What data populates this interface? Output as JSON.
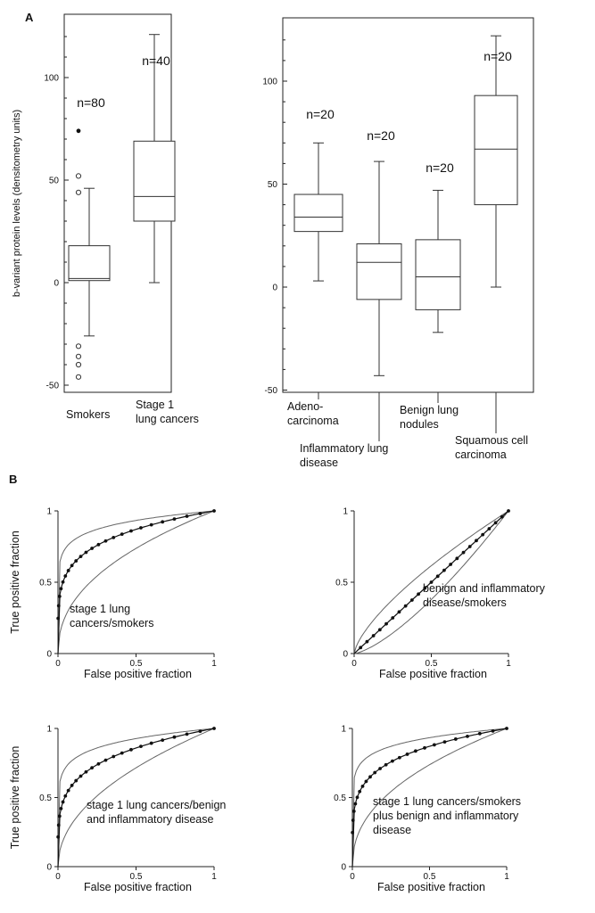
{
  "panels": {
    "a": "A",
    "b": "B"
  },
  "chart_data": [
    {
      "type": "box",
      "ylabel": "b-variant protein levels (densitometry units)",
      "ylim": [
        -50,
        125
      ],
      "yticks": [
        -50,
        0,
        50,
        100
      ],
      "groups": [
        {
          "label": [
            "Smokers"
          ],
          "n_label": "n=80",
          "min": -26,
          "q1": 1,
          "median": 2,
          "q3": 18,
          "max": 46,
          "outliers_open": [
            52,
            44,
            -31,
            -36,
            -40,
            -46
          ],
          "outliers_filled": [
            74
          ]
        },
        {
          "label": [
            "Stage 1",
            "lung cancers"
          ],
          "n_label": "n=40",
          "min": 0,
          "q1": 30,
          "median": 42,
          "q3": 69,
          "max": 121,
          "outliers_open": [],
          "outliers_filled": []
        }
      ]
    },
    {
      "type": "box",
      "ylim": [
        -50,
        125
      ],
      "yticks": [
        -50,
        0,
        50,
        100
      ],
      "groups": [
        {
          "label": [
            "Adeno-",
            "carcinoma"
          ],
          "n_label": "n=20",
          "min": 3,
          "q1": 27,
          "median": 34,
          "q3": 45,
          "max": 70
        },
        {
          "label": [
            "Inflammatory lung",
            "disease"
          ],
          "n_label": "n=20",
          "min": -43,
          "q1": -6,
          "median": 12,
          "q3": 21,
          "max": 61
        },
        {
          "label": [
            "Benign lung",
            "nodules"
          ],
          "n_label": "n=20",
          "min": -22,
          "q1": -11,
          "median": 5,
          "q3": 23,
          "max": 47
        },
        {
          "label": [
            "Squamous cell",
            "carcinoma"
          ],
          "n_label": "n=20",
          "min": 0,
          "q1": 40,
          "median": 67,
          "q3": 93,
          "max": 122
        }
      ]
    },
    {
      "type": "line",
      "xlabel": "False positive fraction",
      "ylabel": "True positive fraction",
      "xlim": [
        0,
        1
      ],
      "ylim": [
        0,
        1
      ],
      "xticks": [
        "0",
        "0.5",
        "1"
      ],
      "yticks": [
        "0",
        "0.5",
        "1"
      ],
      "annotation": [
        "stage 1 lung",
        "cancers/smokers"
      ],
      "roc_shape": 0.2,
      "band": 0.09
    },
    {
      "type": "line",
      "xlabel": "False positive fraction",
      "ylabel": "",
      "xlim": [
        0,
        1
      ],
      "ylim": [
        0,
        1
      ],
      "xticks": [
        "0",
        "0.5",
        "1"
      ],
      "yticks": [
        "0",
        "0.5",
        "1"
      ],
      "annotation": [
        "benign and inflammatory",
        "disease/smokers"
      ],
      "roc_shape": 1.0,
      "band": 0.08
    },
    {
      "type": "line",
      "xlabel": "False positive fraction",
      "ylabel": "True positive fraction",
      "xlim": [
        0,
        1
      ],
      "ylim": [
        0,
        1
      ],
      "xticks": [
        "0",
        "0.5",
        "1"
      ],
      "yticks": [
        "0",
        "0.5",
        "1"
      ],
      "annotation": [
        "stage 1 lung cancers/benign",
        "and inflammatory disease"
      ],
      "roc_shape": 0.22,
      "band": 0.12
    },
    {
      "type": "line",
      "xlabel": "False positive fraction",
      "ylabel": "",
      "xlim": [
        0,
        1
      ],
      "ylim": [
        0,
        1
      ],
      "xticks": [
        "0",
        "0.5",
        "1"
      ],
      "yticks": [
        "0",
        "0.5",
        "1"
      ],
      "annotation": [
        "stage 1 lung cancers/smokers",
        "plus benign and inflammatory",
        "disease"
      ],
      "roc_shape": 0.2,
      "band": 0.1
    }
  ]
}
